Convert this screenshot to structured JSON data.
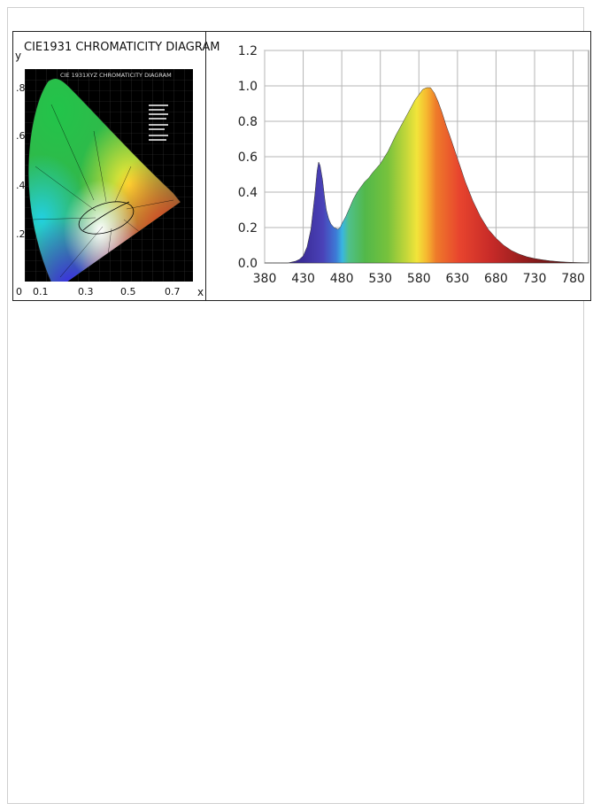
{
  "cie": {
    "title": "CIE1931 CHROMATICITY DIAGRAM",
    "inner_title": "CIE 1931XYZ CHROMATICITY DIAGRAM",
    "ylabel": "y",
    "xlabel": "x",
    "x_ticks": [
      "0",
      "0.1",
      "0.3",
      "0.5",
      "0.7"
    ],
    "y_ticks": [
      ".8",
      ".6",
      ".4",
      ".2"
    ]
  },
  "chart_data": {
    "type": "area",
    "title": "",
    "xlabel": "",
    "ylabel": "",
    "xlim": [
      380,
      800
    ],
    "ylim": [
      0,
      1.2
    ],
    "x_ticks": [
      380,
      430,
      480,
      530,
      580,
      630,
      680,
      730,
      780
    ],
    "y_ticks": [
      0.0,
      0.2,
      0.4,
      0.6,
      0.8,
      1.0,
      1.2
    ],
    "y_tick_labels": [
      "0.0",
      "0.2",
      "0.4",
      "0.6",
      "0.8",
      "1.0",
      "1.2"
    ],
    "grid": true,
    "series": [
      {
        "x": [
          380,
          390,
          400,
          410,
          420,
          425,
          430,
          435,
          440,
          445,
          448,
          450,
          452,
          455,
          458,
          460,
          463,
          466,
          470,
          475,
          478,
          480,
          485,
          490,
          495,
          500,
          505,
          510,
          515,
          520,
          530,
          540,
          550,
          560,
          570,
          575,
          580,
          585,
          590,
          595,
          600,
          605,
          610,
          615,
          620,
          630,
          640,
          650,
          660,
          670,
          680,
          690,
          700,
          710,
          720,
          730,
          740,
          750,
          760,
          770,
          780,
          790,
          800
        ],
        "y": [
          0.0,
          0.0,
          0.0,
          0.0,
          0.01,
          0.02,
          0.04,
          0.09,
          0.19,
          0.38,
          0.52,
          0.57,
          0.55,
          0.47,
          0.36,
          0.3,
          0.25,
          0.22,
          0.2,
          0.19,
          0.2,
          0.22,
          0.26,
          0.31,
          0.36,
          0.4,
          0.43,
          0.46,
          0.48,
          0.51,
          0.56,
          0.63,
          0.72,
          0.8,
          0.88,
          0.92,
          0.95,
          0.98,
          0.99,
          0.99,
          0.96,
          0.91,
          0.85,
          0.78,
          0.72,
          0.59,
          0.46,
          0.35,
          0.26,
          0.19,
          0.14,
          0.1,
          0.07,
          0.05,
          0.035,
          0.025,
          0.018,
          0.012,
          0.008,
          0.005,
          0.003,
          0.002,
          0.001
        ]
      }
    ]
  }
}
